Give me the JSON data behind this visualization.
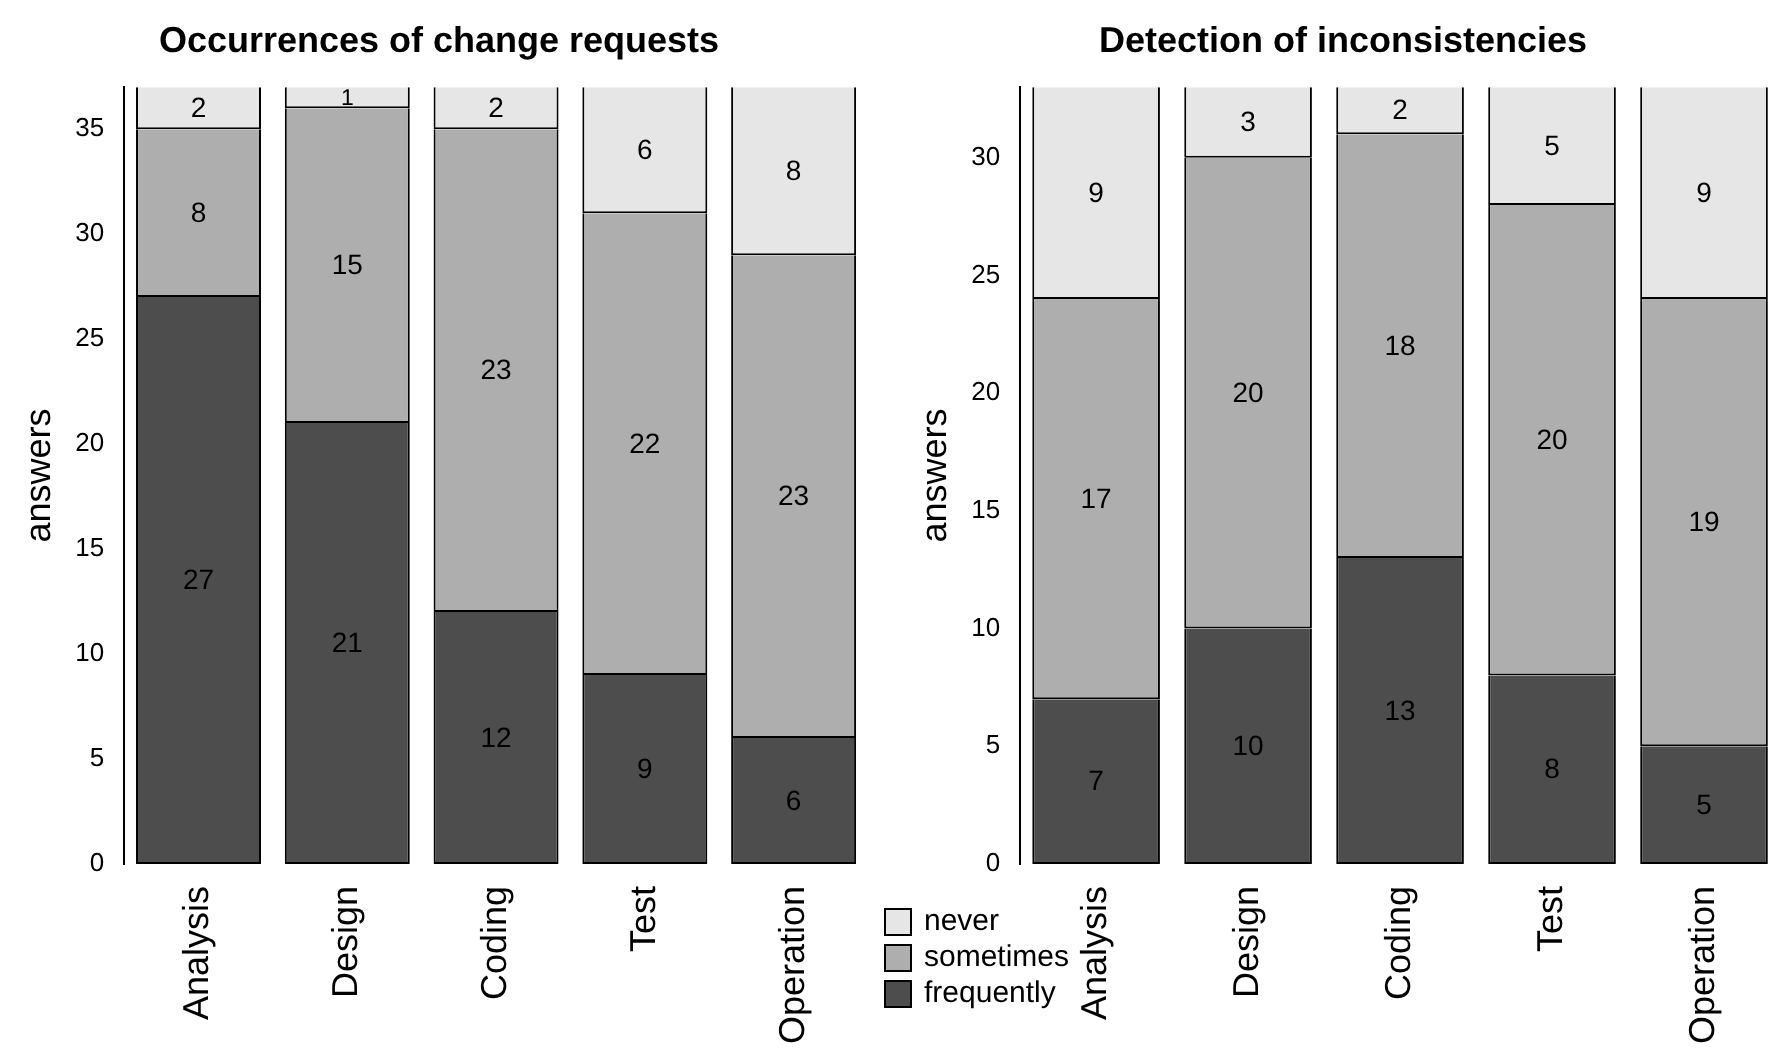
{
  "chart_data": [
    {
      "type": "bar",
      "title": "Occurrences of change requests",
      "ylabel": "answers",
      "categories": [
        "Analysis",
        "Design",
        "Coding",
        "Test",
        "Operation"
      ],
      "stacked": true,
      "series": [
        {
          "name": "frequently",
          "color": "#4d4d4d",
          "values": [
            27,
            21,
            12,
            9,
            6
          ]
        },
        {
          "name": "sometimes",
          "color": "#aeaeae",
          "values": [
            8,
            15,
            23,
            22,
            23
          ]
        },
        {
          "name": "never",
          "color": "#e6e6e6",
          "values": [
            2,
            1,
            2,
            6,
            8
          ]
        }
      ],
      "ylim": [
        0,
        37
      ],
      "yticks": [
        0,
        5,
        10,
        15,
        20,
        25,
        30,
        35
      ],
      "grid": false,
      "data_labels": true,
      "legend": "bottom right"
    },
    {
      "type": "bar",
      "title": "Detection of inconsistencies",
      "ylabel": "answers",
      "categories": [
        "Analysis",
        "Design",
        "Coding",
        "Test",
        "Operation"
      ],
      "stacked": true,
      "series": [
        {
          "name": "frequently",
          "color": "#4d4d4d",
          "values": [
            7,
            10,
            13,
            8,
            5
          ]
        },
        {
          "name": "sometimes",
          "color": "#aeaeae",
          "values": [
            17,
            20,
            18,
            20,
            19
          ]
        },
        {
          "name": "never",
          "color": "#e6e6e6",
          "values": [
            9,
            3,
            2,
            5,
            9
          ]
        }
      ],
      "ylim": [
        0,
        33
      ],
      "yticks": [
        0,
        5,
        10,
        15,
        20,
        25,
        30
      ],
      "grid": false,
      "data_labels": true,
      "legend": "bottom left"
    }
  ]
}
